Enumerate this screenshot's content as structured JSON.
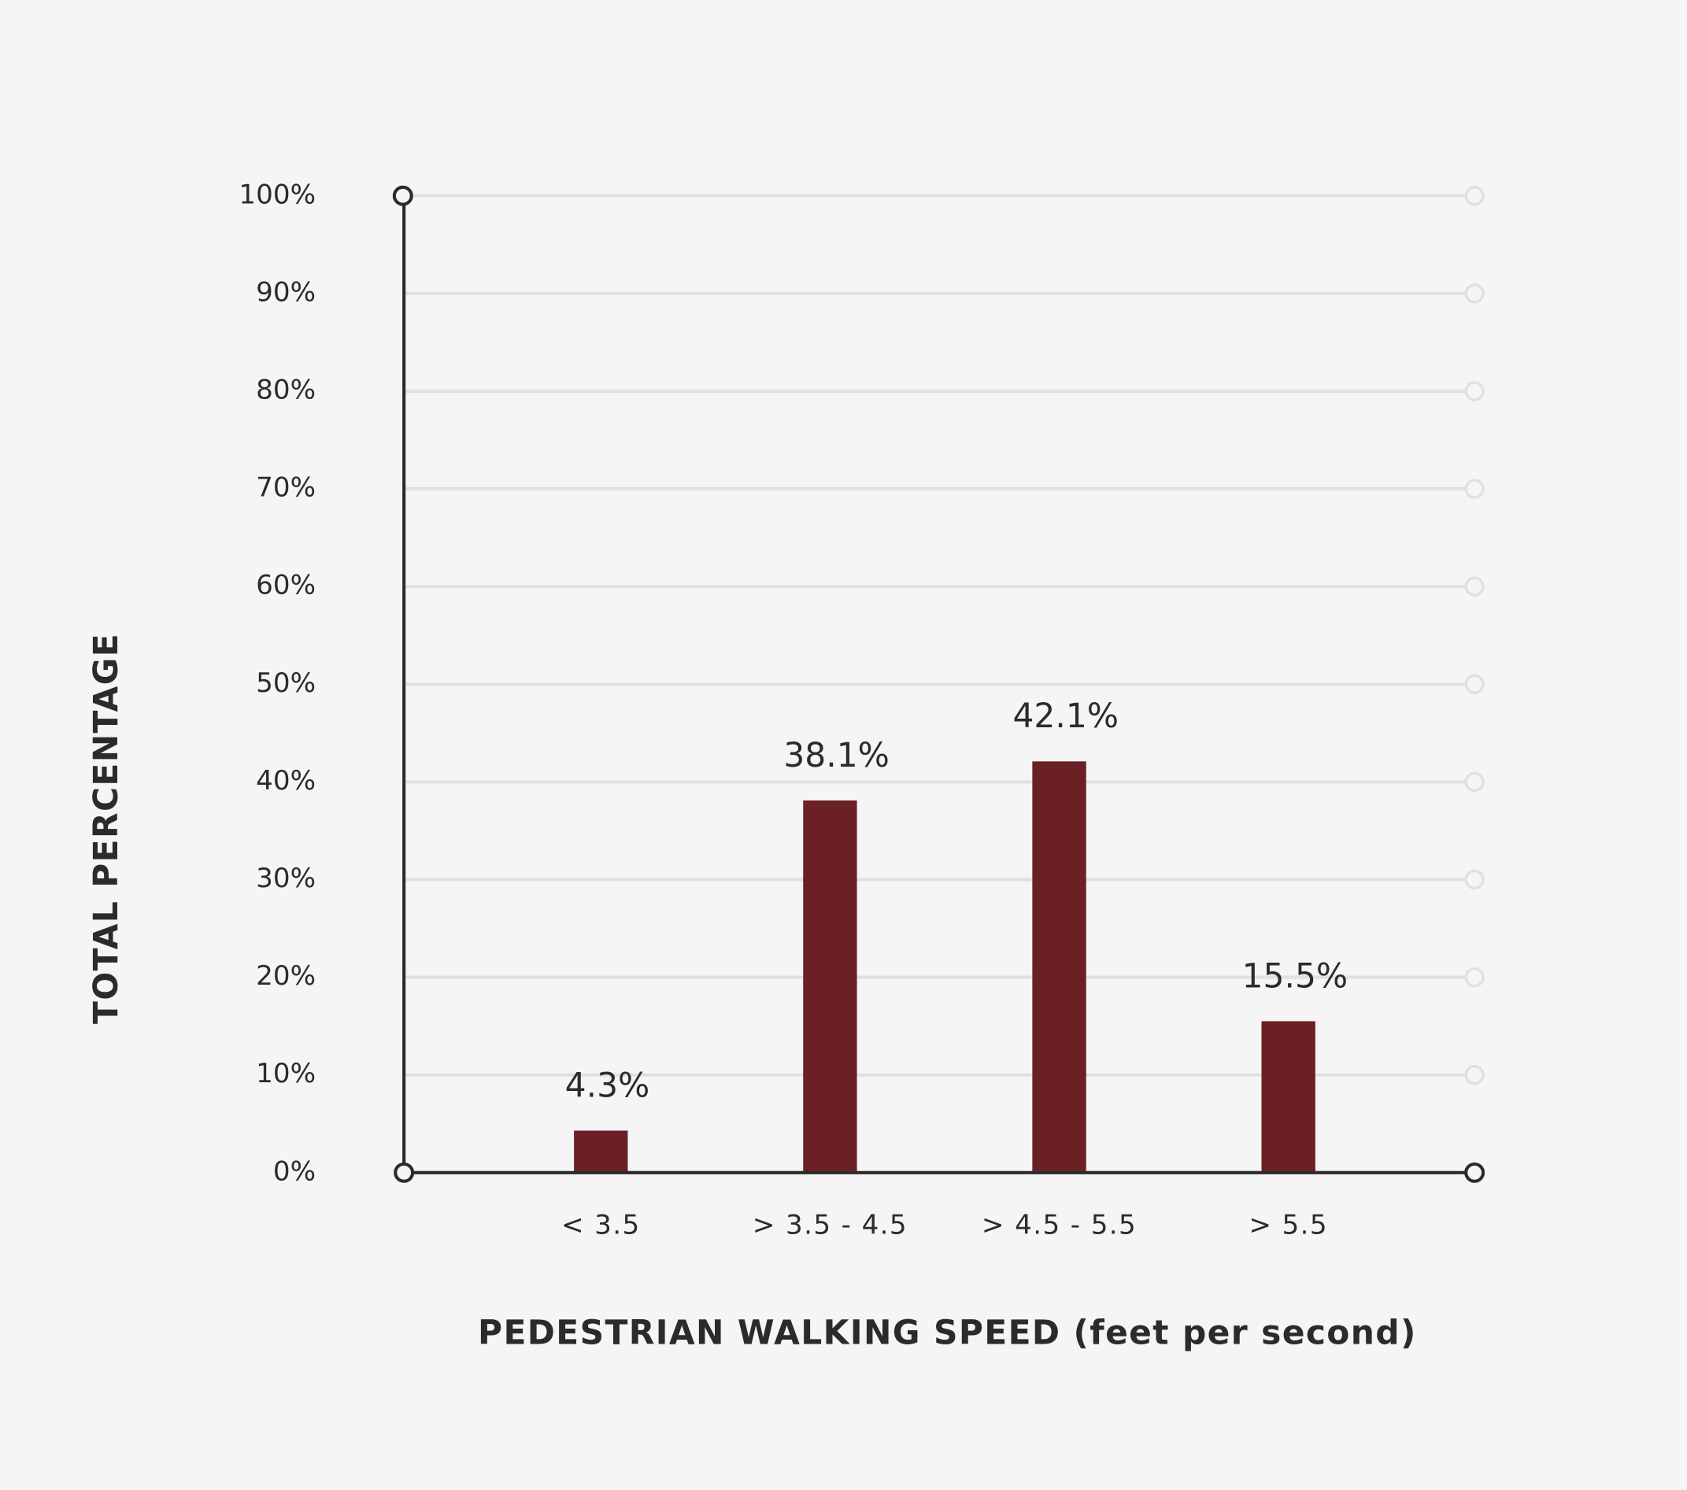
{
  "chart_data": {
    "type": "bar",
    "x_label": "PEDESTRIAN WALKING SPEED (feet per second)",
    "y_label": "TOTAL PERCENTAGE",
    "categories": [
      "< 3.5",
      "> 3.5 - 4.5",
      "> 4.5 - 5.5",
      "> 5.5"
    ],
    "values": [
      4.3,
      38.1,
      42.1,
      15.5
    ],
    "value_labels": [
      "4.3%",
      "38.1%",
      "42.1%",
      "15.5%"
    ],
    "color": "#6b2026",
    "ylim": [
      0,
      100
    ],
    "yticks": [
      {
        "value": 0,
        "label": "0%"
      },
      {
        "value": 10,
        "label": "10%"
      },
      {
        "value": 20,
        "label": "20%"
      },
      {
        "value": 30,
        "label": "30%"
      },
      {
        "value": 40,
        "label": "40%"
      },
      {
        "value": 50,
        "label": "50%"
      },
      {
        "value": 60,
        "label": "60%"
      },
      {
        "value": 70,
        "label": "70%"
      },
      {
        "value": 80,
        "label": "80%"
      },
      {
        "value": 90,
        "label": "90%"
      },
      {
        "value": 100,
        "label": "100%"
      }
    ],
    "grid": true
  }
}
